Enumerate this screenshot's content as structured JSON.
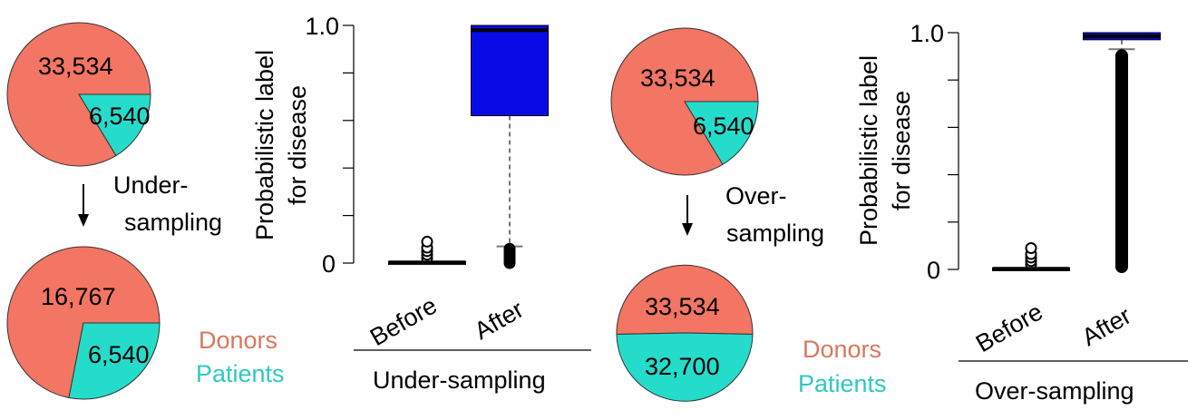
{
  "colors": {
    "donors": "#f37563",
    "patients": "#25dccb",
    "donors_text": "#d9775f",
    "patients_text": "#2fc9bf",
    "box": "#0a0ae6"
  },
  "arrows": {
    "under": "Under-\nsampling",
    "over": "Over-\nsampling"
  },
  "legend_left": {
    "donors": "Donors",
    "patients": "Patients"
  },
  "legend_right": {
    "donors": "Donors",
    "patients": "Patients"
  },
  "chart_data": [
    {
      "type": "pie",
      "categories": [
        "Donors",
        "Patients"
      ],
      "values": [
        33534,
        6540
      ],
      "labels": [
        "33,534",
        "6,540"
      ]
    },
    {
      "type": "pie",
      "categories": [
        "Donors",
        "Patients"
      ],
      "values": [
        16767,
        6540
      ],
      "labels": [
        "16,767",
        "6,540"
      ]
    },
    {
      "type": "box",
      "categories": [
        "Before",
        "After"
      ],
      "ylabel": "Probabilistic label\nfor disease",
      "xlabel": "Under-sampling",
      "ylim": [
        0,
        1
      ],
      "yticks": [
        "0",
        "1.0"
      ],
      "boxes": [
        {
          "q1": 0.0,
          "median": 0.003,
          "q3": 0.006,
          "whisker_low": 0.0,
          "whisker_high": 0.01,
          "outliers": [
            0.02,
            0.035,
            0.05,
            0.065,
            0.09
          ]
        },
        {
          "q1": 0.62,
          "median": 0.98,
          "q3": 1.0,
          "whisker_low": 0.07,
          "whisker_high": 1.0,
          "outliers": [
            0.0,
            0.01,
            0.02,
            0.03,
            0.04,
            0.05,
            0.06
          ]
        }
      ]
    },
    {
      "type": "pie",
      "categories": [
        "Donors",
        "Patients"
      ],
      "values": [
        33534,
        6540
      ],
      "labels": [
        "33,534",
        "6,540"
      ]
    },
    {
      "type": "pie",
      "categories": [
        "Donors",
        "Patients"
      ],
      "values": [
        33534,
        32700
      ],
      "labels": [
        "33,534",
        "32,700"
      ]
    },
    {
      "type": "box",
      "categories": [
        "Before",
        "After"
      ],
      "ylabel": "Probabilistic label\nfor disease",
      "xlabel": "Over-sampling",
      "ylim": [
        0,
        1
      ],
      "yticks": [
        "0",
        "1.0"
      ],
      "boxes": [
        {
          "q1": 0.0,
          "median": 0.003,
          "q3": 0.006,
          "whisker_low": 0.0,
          "whisker_high": 0.01,
          "outliers": [
            0.02,
            0.035,
            0.05,
            0.065,
            0.09
          ]
        },
        {
          "q1": 0.97,
          "median": 0.985,
          "q3": 1.0,
          "whisker_low": 0.93,
          "whisker_high": 1.0,
          "outlier_band": [
            0.0,
            0.93
          ]
        }
      ]
    }
  ]
}
